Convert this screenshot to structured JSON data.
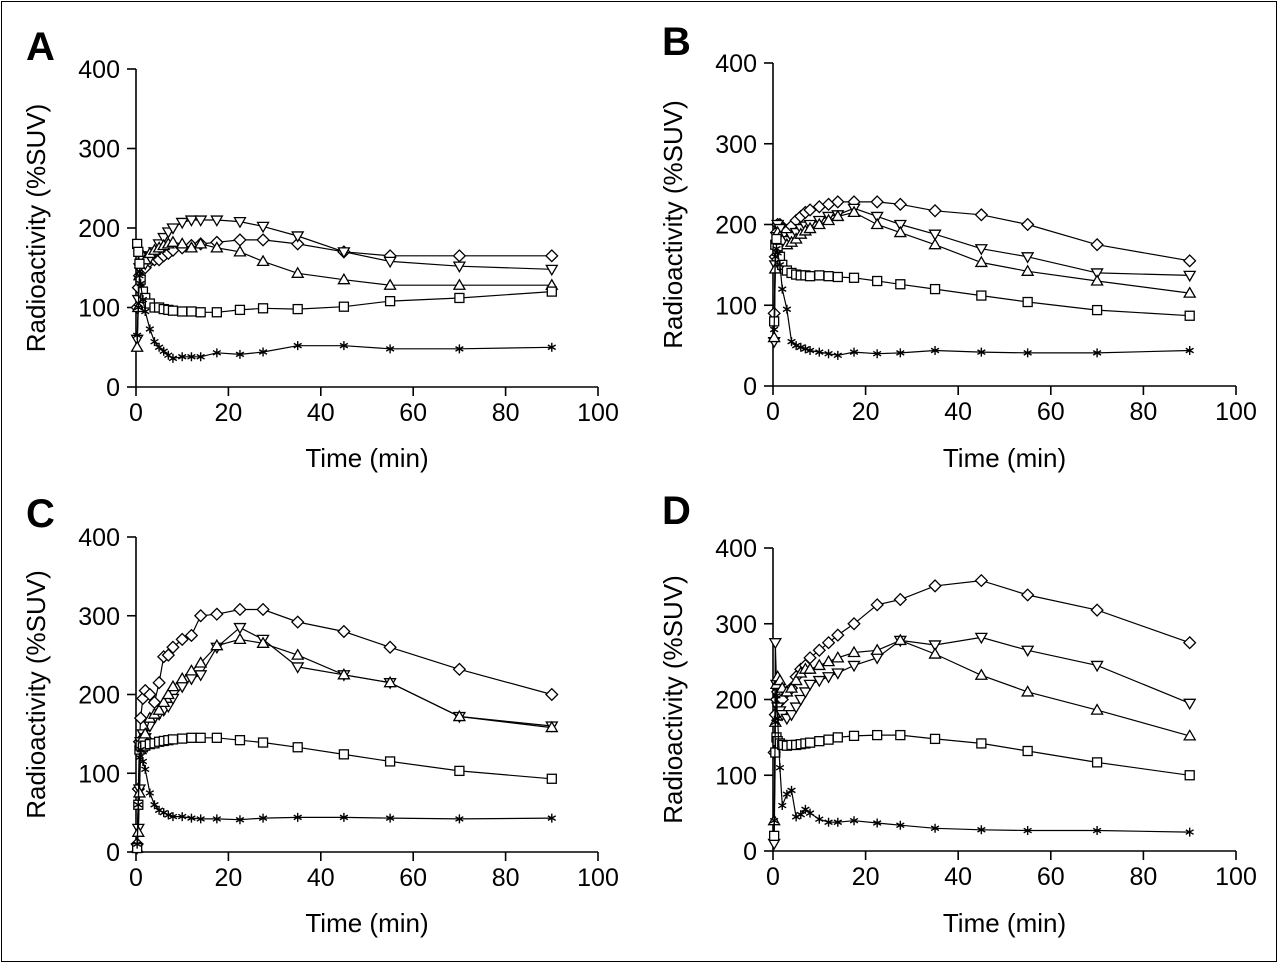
{
  "chart_data": [
    {
      "type": "line",
      "panel_label": "A",
      "xlabel": "Time (min)",
      "ylabel": "Radioactivity (%SUV)",
      "xlim": [
        0,
        100
      ],
      "ylim": [
        0,
        400
      ],
      "xticks": [
        0,
        20,
        40,
        60,
        80,
        100
      ],
      "yticks": [
        0,
        100,
        200,
        300,
        400
      ],
      "series": [
        {
          "marker": "diamond",
          "x": [
            0.25,
            0.5,
            0.75,
            1,
            1.5,
            2,
            3,
            4,
            5,
            6,
            7,
            8,
            10,
            12,
            14,
            17.5,
            22.5,
            27.5,
            35,
            45,
            55,
            70,
            90
          ],
          "y": [
            100,
            125,
            140,
            150,
            155,
            150,
            158,
            160,
            160,
            165,
            168,
            172,
            175,
            178,
            180,
            182,
            185,
            185,
            180,
            170,
            165,
            165,
            165
          ]
        },
        {
          "marker": "triangle-down",
          "x": [
            0.25,
            0.5,
            0.75,
            1,
            1.5,
            2,
            3,
            4,
            5,
            6,
            7,
            8,
            10,
            12,
            14,
            17.5,
            22.5,
            27.5,
            35,
            45,
            55,
            70,
            90
          ],
          "y": [
            60,
            110,
            150,
            165,
            160,
            155,
            162,
            170,
            180,
            188,
            195,
            200,
            207,
            210,
            210,
            210,
            208,
            202,
            190,
            170,
            158,
            152,
            148
          ]
        },
        {
          "marker": "triangle-up",
          "x": [
            0.25,
            0.5,
            0.75,
            1,
            1.5,
            2,
            3,
            4,
            5,
            6,
            7,
            8,
            10,
            12,
            14,
            17.5,
            22.5,
            27.5,
            35,
            45,
            55,
            70,
            90
          ],
          "y": [
            50,
            100,
            140,
            160,
            165,
            160,
            168,
            172,
            175,
            178,
            180,
            182,
            180,
            175,
            180,
            175,
            170,
            158,
            143,
            135,
            128,
            128,
            128
          ]
        },
        {
          "marker": "square",
          "x": [
            0.25,
            0.5,
            0.75,
            1,
            1.5,
            2,
            3,
            4,
            5,
            6,
            7,
            8,
            10,
            12,
            14,
            17.5,
            22.5,
            27.5,
            35,
            45,
            55,
            70,
            90
          ],
          "y": [
            180,
            170,
            155,
            135,
            120,
            112,
            105,
            100,
            100,
            98,
            97,
            96,
            95,
            95,
            94,
            94,
            97,
            99,
            98,
            101,
            108,
            112,
            120
          ]
        },
        {
          "marker": "star",
          "x": [
            0.25,
            0.5,
            0.75,
            1,
            1.5,
            2,
            3,
            4,
            5,
            6,
            7,
            8,
            10,
            12,
            14,
            17.5,
            22.5,
            27.5,
            35,
            45,
            55,
            70,
            90
          ],
          "y": [
            65,
            100,
            140,
            130,
            110,
            95,
            73,
            57,
            50,
            45,
            40,
            36,
            38,
            38,
            38,
            43,
            41,
            44,
            52,
            52,
            48,
            48,
            50
          ]
        }
      ]
    },
    {
      "type": "line",
      "panel_label": "B",
      "xlabel": "Time (min)",
      "ylabel": "Radioactivity (%SUV)",
      "xlim": [
        0,
        100
      ],
      "ylim": [
        0,
        400
      ],
      "xticks": [
        0,
        20,
        40,
        60,
        80,
        100
      ],
      "yticks": [
        0,
        100,
        200,
        300,
        400
      ],
      "series": [
        {
          "marker": "diamond",
          "x": [
            0.25,
            0.5,
            0.75,
            1,
            1.5,
            2,
            3,
            4,
            5,
            6,
            7,
            8,
            10,
            12,
            14,
            17.5,
            22.5,
            27.5,
            35,
            45,
            55,
            70,
            90
          ],
          "y": [
            90,
            160,
            190,
            200,
            200,
            195,
            192,
            198,
            205,
            210,
            215,
            218,
            222,
            225,
            228,
            228,
            228,
            225,
            217,
            212,
            200,
            175,
            155
          ]
        },
        {
          "marker": "triangle-down",
          "x": [
            0.25,
            0.5,
            0.75,
            1,
            1.5,
            2,
            3,
            4,
            5,
            6,
            7,
            8,
            10,
            12,
            14,
            17.5,
            22.5,
            27.5,
            35,
            45,
            55,
            70,
            90
          ],
          "y": [
            55,
            150,
            185,
            200,
            195,
            185,
            180,
            185,
            190,
            195,
            198,
            200,
            205,
            210,
            212,
            220,
            210,
            200,
            188,
            170,
            160,
            140,
            137
          ]
        },
        {
          "marker": "triangle-up",
          "x": [
            0.25,
            0.5,
            0.75,
            1,
            1.5,
            2,
            3,
            4,
            5,
            6,
            7,
            8,
            10,
            12,
            14,
            17.5,
            22.5,
            27.5,
            35,
            45,
            55,
            70,
            90
          ],
          "y": [
            60,
            145,
            175,
            190,
            185,
            180,
            175,
            178,
            182,
            188,
            192,
            195,
            200,
            205,
            210,
            215,
            200,
            190,
            175,
            153,
            142,
            130,
            115
          ]
        },
        {
          "marker": "square",
          "x": [
            0.25,
            0.5,
            0.75,
            1,
            1.5,
            2,
            3,
            4,
            5,
            6,
            7,
            8,
            10,
            12,
            14,
            17.5,
            22.5,
            27.5,
            35,
            45,
            55,
            70,
            90
          ],
          "y": [
            80,
            175,
            182,
            170,
            160,
            150,
            143,
            140,
            138,
            137,
            137,
            136,
            137,
            136,
            135,
            134,
            130,
            126,
            120,
            112,
            104,
            94,
            87
          ]
        },
        {
          "marker": "star",
          "x": [
            0.25,
            0.5,
            0.75,
            1,
            1.5,
            2,
            3,
            4,
            5,
            6,
            7,
            8,
            10,
            12,
            14,
            17.5,
            22.5,
            27.5,
            35,
            45,
            55,
            70,
            90
          ],
          "y": [
            70,
            160,
            170,
            165,
            150,
            120,
            95,
            55,
            50,
            48,
            46,
            44,
            42,
            40,
            38,
            42,
            40,
            41,
            44,
            42,
            41,
            41,
            44
          ]
        }
      ]
    },
    {
      "type": "line",
      "panel_label": "C",
      "xlabel": "Time (min)",
      "ylabel": "Radioactivity (%SUV)",
      "xlim": [
        0,
        100
      ],
      "ylim": [
        0,
        400
      ],
      "xticks": [
        0,
        20,
        40,
        60,
        80,
        100
      ],
      "yticks": [
        0,
        100,
        200,
        300,
        400
      ],
      "series": [
        {
          "marker": "diamond",
          "x": [
            0.25,
            0.5,
            0.75,
            1,
            1.5,
            2,
            3,
            4,
            5,
            6,
            7,
            8,
            10,
            12,
            14,
            17.5,
            22.5,
            27.5,
            35,
            45,
            55,
            70,
            90
          ],
          "y": [
            10,
            80,
            140,
            170,
            195,
            205,
            200,
            190,
            215,
            248,
            250,
            260,
            270,
            275,
            300,
            302,
            308,
            308,
            292,
            280,
            260,
            232,
            200
          ]
        },
        {
          "marker": "triangle-down",
          "x": [
            0.25,
            0.5,
            0.75,
            1,
            1.5,
            2,
            3,
            4,
            5,
            6,
            7,
            8,
            10,
            12,
            14,
            17.5,
            22.5,
            27.5,
            35,
            45,
            55,
            70,
            90
          ],
          "y": [
            5,
            30,
            80,
            140,
            150,
            145,
            160,
            170,
            175,
            180,
            185,
            195,
            210,
            220,
            225,
            260,
            285,
            270,
            235,
            225,
            215,
            172,
            160
          ]
        },
        {
          "marker": "triangle-up",
          "x": [
            0.25,
            0.5,
            0.75,
            1,
            1.5,
            2,
            3,
            4,
            5,
            6,
            7,
            8,
            10,
            12,
            14,
            17.5,
            22.5,
            27.5,
            35,
            45,
            55,
            70,
            90
          ],
          "y": [
            5,
            25,
            75,
            130,
            145,
            150,
            170,
            175,
            180,
            190,
            200,
            210,
            220,
            230,
            240,
            262,
            270,
            265,
            250,
            225,
            215,
            172,
            158
          ]
        },
        {
          "marker": "square",
          "x": [
            0.25,
            0.5,
            0.75,
            1,
            1.5,
            2,
            3,
            4,
            5,
            6,
            7,
            8,
            10,
            12,
            14,
            17.5,
            22.5,
            27.5,
            35,
            45,
            55,
            70,
            90
          ],
          "y": [
            5,
            60,
            130,
            135,
            133,
            135,
            137,
            138,
            140,
            141,
            142,
            143,
            144,
            145,
            145,
            145,
            142,
            139,
            133,
            124,
            115,
            103,
            93
          ]
        },
        {
          "marker": "star",
          "x": [
            0.25,
            0.5,
            0.75,
            1,
            1.5,
            2,
            3,
            4,
            5,
            6,
            7,
            8,
            10,
            12,
            14,
            17.5,
            22.5,
            27.5,
            35,
            45,
            55,
            70,
            90
          ],
          "y": [
            10,
            60,
            120,
            130,
            115,
            105,
            75,
            60,
            53,
            50,
            47,
            45,
            45,
            43,
            42,
            42,
            41,
            43,
            44,
            44,
            43,
            42,
            43
          ]
        }
      ]
    },
    {
      "type": "line",
      "panel_label": "D",
      "xlabel": "Time (min)",
      "ylabel": "Radioactivity (%SUV)",
      "xlim": [
        0,
        100
      ],
      "ylim": [
        0,
        400
      ],
      "xticks": [
        0,
        20,
        40,
        60,
        80,
        100
      ],
      "yticks": [
        0,
        100,
        200,
        300,
        400
      ],
      "series": [
        {
          "marker": "diamond",
          "x": [
            0.25,
            0.5,
            0.75,
            1,
            1.5,
            2,
            3,
            4,
            5,
            6,
            7,
            8,
            10,
            12,
            14,
            17.5,
            22.5,
            27.5,
            35,
            45,
            55,
            70,
            90
          ],
          "y": [
            130,
            180,
            200,
            210,
            205,
            200,
            210,
            215,
            230,
            240,
            245,
            255,
            265,
            275,
            285,
            300,
            325,
            332,
            350,
            357,
            338,
            318,
            275
          ]
        },
        {
          "marker": "triangle-down",
          "x": [
            0.25,
            0.5,
            0.75,
            1,
            1.5,
            2,
            3,
            4,
            5,
            6,
            7,
            8,
            10,
            12,
            14,
            17.5,
            22.5,
            27.5,
            35,
            45,
            55,
            70,
            90
          ],
          "y": [
            10,
            275,
            220,
            190,
            185,
            180,
            175,
            180,
            190,
            200,
            210,
            220,
            225,
            230,
            235,
            245,
            255,
            278,
            272,
            282,
            265,
            245,
            195
          ]
        },
        {
          "marker": "triangle-up",
          "x": [
            0.25,
            0.5,
            0.75,
            1,
            1.5,
            2,
            3,
            4,
            5,
            6,
            7,
            8,
            10,
            12,
            14,
            17.5,
            22.5,
            27.5,
            35,
            45,
            55,
            70,
            90
          ],
          "y": [
            40,
            170,
            220,
            230,
            225,
            215,
            210,
            215,
            225,
            235,
            240,
            240,
            245,
            250,
            255,
            262,
            265,
            278,
            260,
            232,
            210,
            186,
            152
          ]
        },
        {
          "marker": "square",
          "x": [
            0.25,
            0.5,
            0.75,
            1,
            1.5,
            2,
            3,
            4,
            5,
            6,
            7,
            8,
            10,
            12,
            14,
            17.5,
            22.5,
            27.5,
            35,
            45,
            55,
            70,
            90
          ],
          "y": [
            20,
            130,
            150,
            145,
            142,
            140,
            139,
            140,
            140,
            141,
            142,
            143,
            145,
            147,
            150,
            152,
            153,
            153,
            148,
            142,
            132,
            117,
            100
          ]
        },
        {
          "marker": "star",
          "x": [
            0.25,
            0.5,
            0.75,
            1,
            1.5,
            2,
            3,
            4,
            5,
            6,
            7,
            8,
            10,
            12,
            14,
            17.5,
            22.5,
            27.5,
            35,
            45,
            55,
            70,
            90
          ],
          "y": [
            40,
            170,
            205,
            175,
            110,
            60,
            75,
            80,
            45,
            48,
            55,
            50,
            42,
            38,
            38,
            40,
            37,
            34,
            30,
            28,
            27,
            27,
            25
          ]
        }
      ]
    }
  ]
}
